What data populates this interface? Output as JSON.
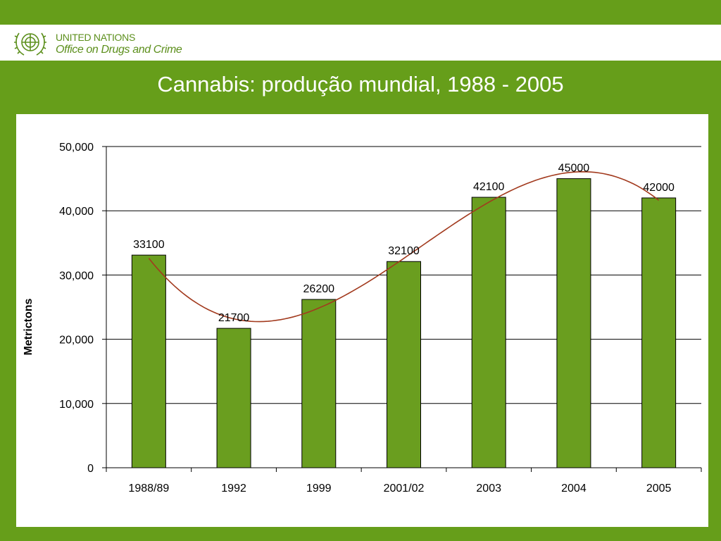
{
  "header": {
    "org_line1": "UNITED NATIONS",
    "org_line2": "Office on Drugs and Crime",
    "logo_icon": "un-emblem-icon"
  },
  "colors": {
    "background": "#669e1a",
    "bar_fill": "#6a9e1f",
    "trend_line": "#a23a1e",
    "gridline": "#000000"
  },
  "chart_data": {
    "type": "bar",
    "title": "Cannabis: produção mundial, 1988 - 2005",
    "xlabel": "",
    "ylabel": "Metrictons",
    "categories": [
      "1988/89",
      "1992",
      "1999",
      "2001/02",
      "2003",
      "2004",
      "2005"
    ],
    "series": [
      {
        "values": [
          33100,
          21700,
          26200,
          32100,
          42100,
          45000,
          42000
        ]
      }
    ],
    "data_labels": [
      "33100",
      "21700",
      "26200",
      "32100",
      "42100",
      "45000",
      "42000"
    ],
    "yticks": [
      "0",
      "10,000",
      "20,000",
      "30,000",
      "40,000",
      "50,000"
    ],
    "ytick_values": [
      0,
      10000,
      20000,
      30000,
      40000,
      50000
    ],
    "ylim": [
      0,
      50000
    ],
    "grid": true,
    "legend": "none",
    "trendline": "polynomial"
  }
}
